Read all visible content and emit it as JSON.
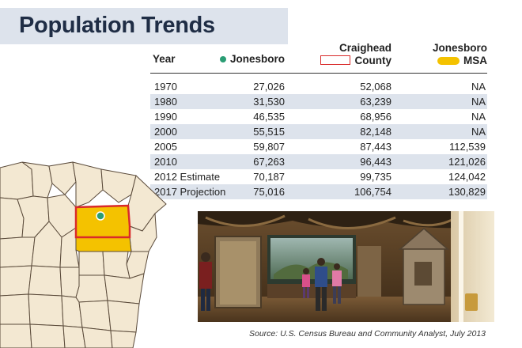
{
  "title": "Population Trends",
  "table": {
    "headers": {
      "year": "Year",
      "jonesboro": "Jonesboro",
      "craighead_line1": "Craighead",
      "craighead_line2": "County",
      "msa_line1": "Jonesboro",
      "msa_line2": "MSA"
    },
    "rows": [
      {
        "year": "1970",
        "jonesboro": "27,026",
        "craighead": "52,068",
        "msa": "NA"
      },
      {
        "year": "1980",
        "jonesboro": "31,530",
        "craighead": "63,239",
        "msa": "NA"
      },
      {
        "year": "1990",
        "jonesboro": "46,535",
        "craighead": "68,956",
        "msa": "NA"
      },
      {
        "year": "2000",
        "jonesboro": "55,515",
        "craighead": "82,148",
        "msa": "NA"
      },
      {
        "year": "2005",
        "jonesboro": "59,807",
        "craighead": "87,443",
        "msa": "112,539"
      },
      {
        "year": "2010",
        "jonesboro": "67,263",
        "craighead": "96,443",
        "msa": "121,026"
      },
      {
        "year": "2012 Estimate",
        "jonesboro": "70,187",
        "craighead": "99,735",
        "msa": "124,042"
      },
      {
        "year": "2017 Projection",
        "jonesboro": "75,016",
        "craighead": "106,754",
        "msa": "130,829"
      }
    ]
  },
  "legend_colors": {
    "jonesboro_dot": "#2a9d74",
    "county_outline": "#d92a2a",
    "msa_fill": "#f4c200",
    "row_shade": "#dde3ec",
    "title_band": "#dde3ec"
  },
  "source": "Source:  U.S. Census Bureau and Community Analyst, July 2013"
}
